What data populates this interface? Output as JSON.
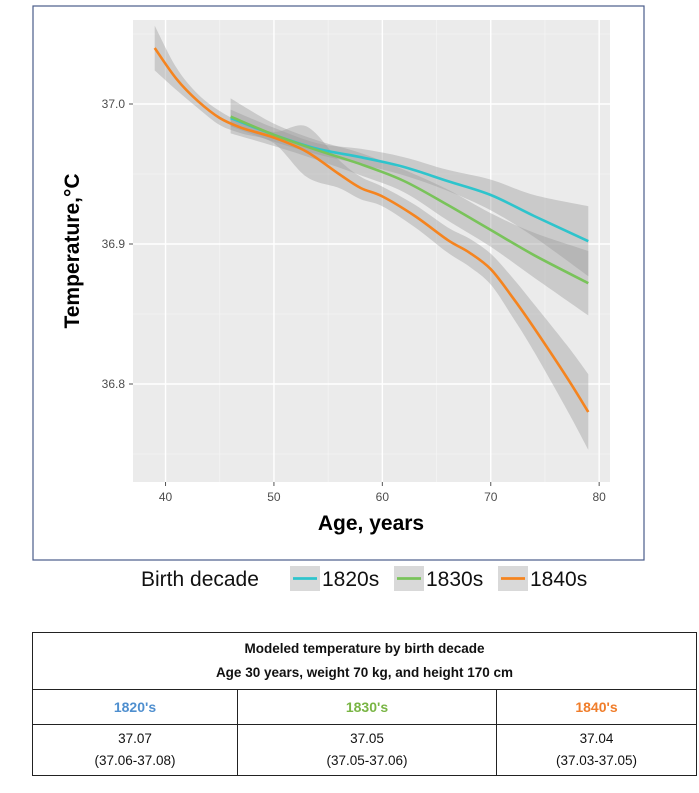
{
  "chart_data": {
    "type": "line",
    "xlabel": "Age, years",
    "ylabel": "Temperature,°C",
    "xlim": [
      37,
      81
    ],
    "ylim": [
      36.73,
      37.06
    ],
    "x_ticks": [
      "40",
      "50",
      "60",
      "70",
      "80"
    ],
    "y_ticks": [
      "36.8",
      "36.9",
      "37.0"
    ],
    "grid": true,
    "legend": {
      "title": "Birth decade",
      "position": "bottom"
    },
    "series": [
      {
        "name": "1820s",
        "color": "#2ec4cc",
        "x": [
          46,
          50,
          54,
          58,
          62,
          66,
          70,
          74,
          79
        ],
        "y": [
          36.99,
          36.978,
          36.968,
          36.962,
          36.955,
          36.945,
          36.935,
          36.92,
          36.902
        ],
        "ci_upper": [
          36.996,
          36.983,
          36.972,
          36.968,
          36.962,
          36.953,
          36.946,
          36.935,
          36.927
        ],
        "ci_lower": [
          36.984,
          36.973,
          36.964,
          36.957,
          36.949,
          36.938,
          36.924,
          36.905,
          36.877
        ]
      },
      {
        "name": "1830s",
        "color": "#79c35a",
        "x": [
          46,
          50,
          54,
          58,
          62,
          66,
          70,
          74,
          79
        ],
        "y": [
          36.991,
          36.978,
          36.967,
          36.957,
          36.945,
          36.928,
          36.91,
          36.892,
          36.872
        ],
        "ci_upper": [
          37.004,
          36.986,
          36.974,
          36.965,
          36.953,
          36.939,
          36.922,
          36.908,
          36.895
        ],
        "ci_lower": [
          36.979,
          36.97,
          36.96,
          36.949,
          36.937,
          36.917,
          36.898,
          36.876,
          36.849
        ]
      },
      {
        "name": "1840s",
        "color": "#f5841f",
        "x": [
          39,
          41,
          43,
          45,
          47,
          50,
          53,
          56,
          58,
          60,
          63,
          66,
          68,
          70,
          72,
          74,
          77,
          79
        ],
        "y": [
          37.04,
          37.018,
          37.002,
          36.99,
          36.983,
          36.976,
          36.966,
          36.95,
          36.94,
          36.934,
          36.92,
          36.903,
          36.894,
          36.882,
          36.862,
          36.84,
          36.805,
          36.78
        ],
        "ci_upper": [
          37.056,
          37.026,
          37.007,
          36.995,
          36.987,
          36.98,
          36.984,
          36.96,
          36.948,
          36.941,
          36.928,
          36.912,
          36.904,
          36.893,
          36.876,
          36.857,
          36.828,
          36.807
        ],
        "ci_lower": [
          37.024,
          37.01,
          36.997,
          36.985,
          36.979,
          36.972,
          36.948,
          36.94,
          36.932,
          36.927,
          36.912,
          36.894,
          36.884,
          36.871,
          36.848,
          36.823,
          36.782,
          36.753
        ]
      }
    ]
  },
  "table": {
    "title_line1": "Modeled temperature by birth decade",
    "title_line2": "Age 30 years, weight 70 kg, and height 170 cm",
    "columns": [
      {
        "label": "1820's",
        "color": "#4f8fcf",
        "value": "37.07",
        "ci": "(37.06-37.08)"
      },
      {
        "label": "1830's",
        "color": "#79b544",
        "value": "37.05",
        "ci": "(37.05-37.06)"
      },
      {
        "label": "1840's",
        "color": "#f07d2a",
        "value": "37.04",
        "ci": "(37.03-37.05)"
      }
    ]
  }
}
